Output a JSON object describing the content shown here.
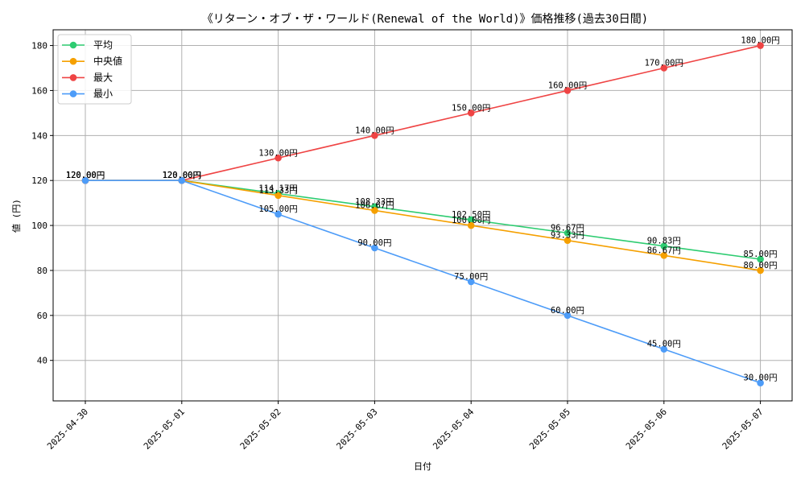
{
  "chart_data": {
    "type": "line",
    "title": "《リターン・オブ・ザ・ワールド(Renewal of the World)》価格推移(過去30日間)",
    "xlabel": "日付",
    "ylabel": "値 (円)",
    "categories": [
      "2025-04-30",
      "2025-05-01",
      "2025-05-02",
      "2025-05-03",
      "2025-05-04",
      "2025-05-05",
      "2025-05-06",
      "2025-05-07"
    ],
    "ylim": [
      22,
      187
    ],
    "yticks": [
      40,
      60,
      80,
      100,
      120,
      140,
      160,
      180
    ],
    "grid": true,
    "legend_position": "top-left",
    "series": [
      {
        "name": "平均",
        "color": "#2ecc71",
        "values": [
          120,
          120,
          114.17,
          108.33,
          102.5,
          96.67,
          90.83,
          85
        ],
        "labels": [
          "120.00円",
          "120.00円",
          "114.17円",
          "108.33円",
          "102.50円",
          "96.67円",
          "90.83円",
          "85.00円"
        ]
      },
      {
        "name": "中央値",
        "color": "#f5a000",
        "values": [
          120,
          120,
          113.33,
          106.67,
          100,
          93.33,
          86.67,
          80
        ],
        "labels": [
          "120.00円",
          "120.00円",
          "113.33円",
          "106.67円",
          "100.00円",
          "93.33円",
          "86.67円",
          "80.00円"
        ]
      },
      {
        "name": "最大",
        "color": "#ef4444",
        "values": [
          120,
          120,
          130,
          140,
          150,
          160,
          170,
          180
        ],
        "labels": [
          "120.00円",
          "120.00円",
          "130.00円",
          "140.00円",
          "150.00円",
          "160.00円",
          "170.00円",
          "180.00円"
        ]
      },
      {
        "name": "最小",
        "color": "#4d9cf8",
        "values": [
          120,
          120,
          105,
          90,
          75,
          60,
          45,
          30
        ],
        "labels": [
          "120.00円",
          "120.00円",
          "105.00円",
          "90.00円",
          "75.00円",
          "60.00円",
          "45.00円",
          "30.00円"
        ]
      }
    ]
  }
}
